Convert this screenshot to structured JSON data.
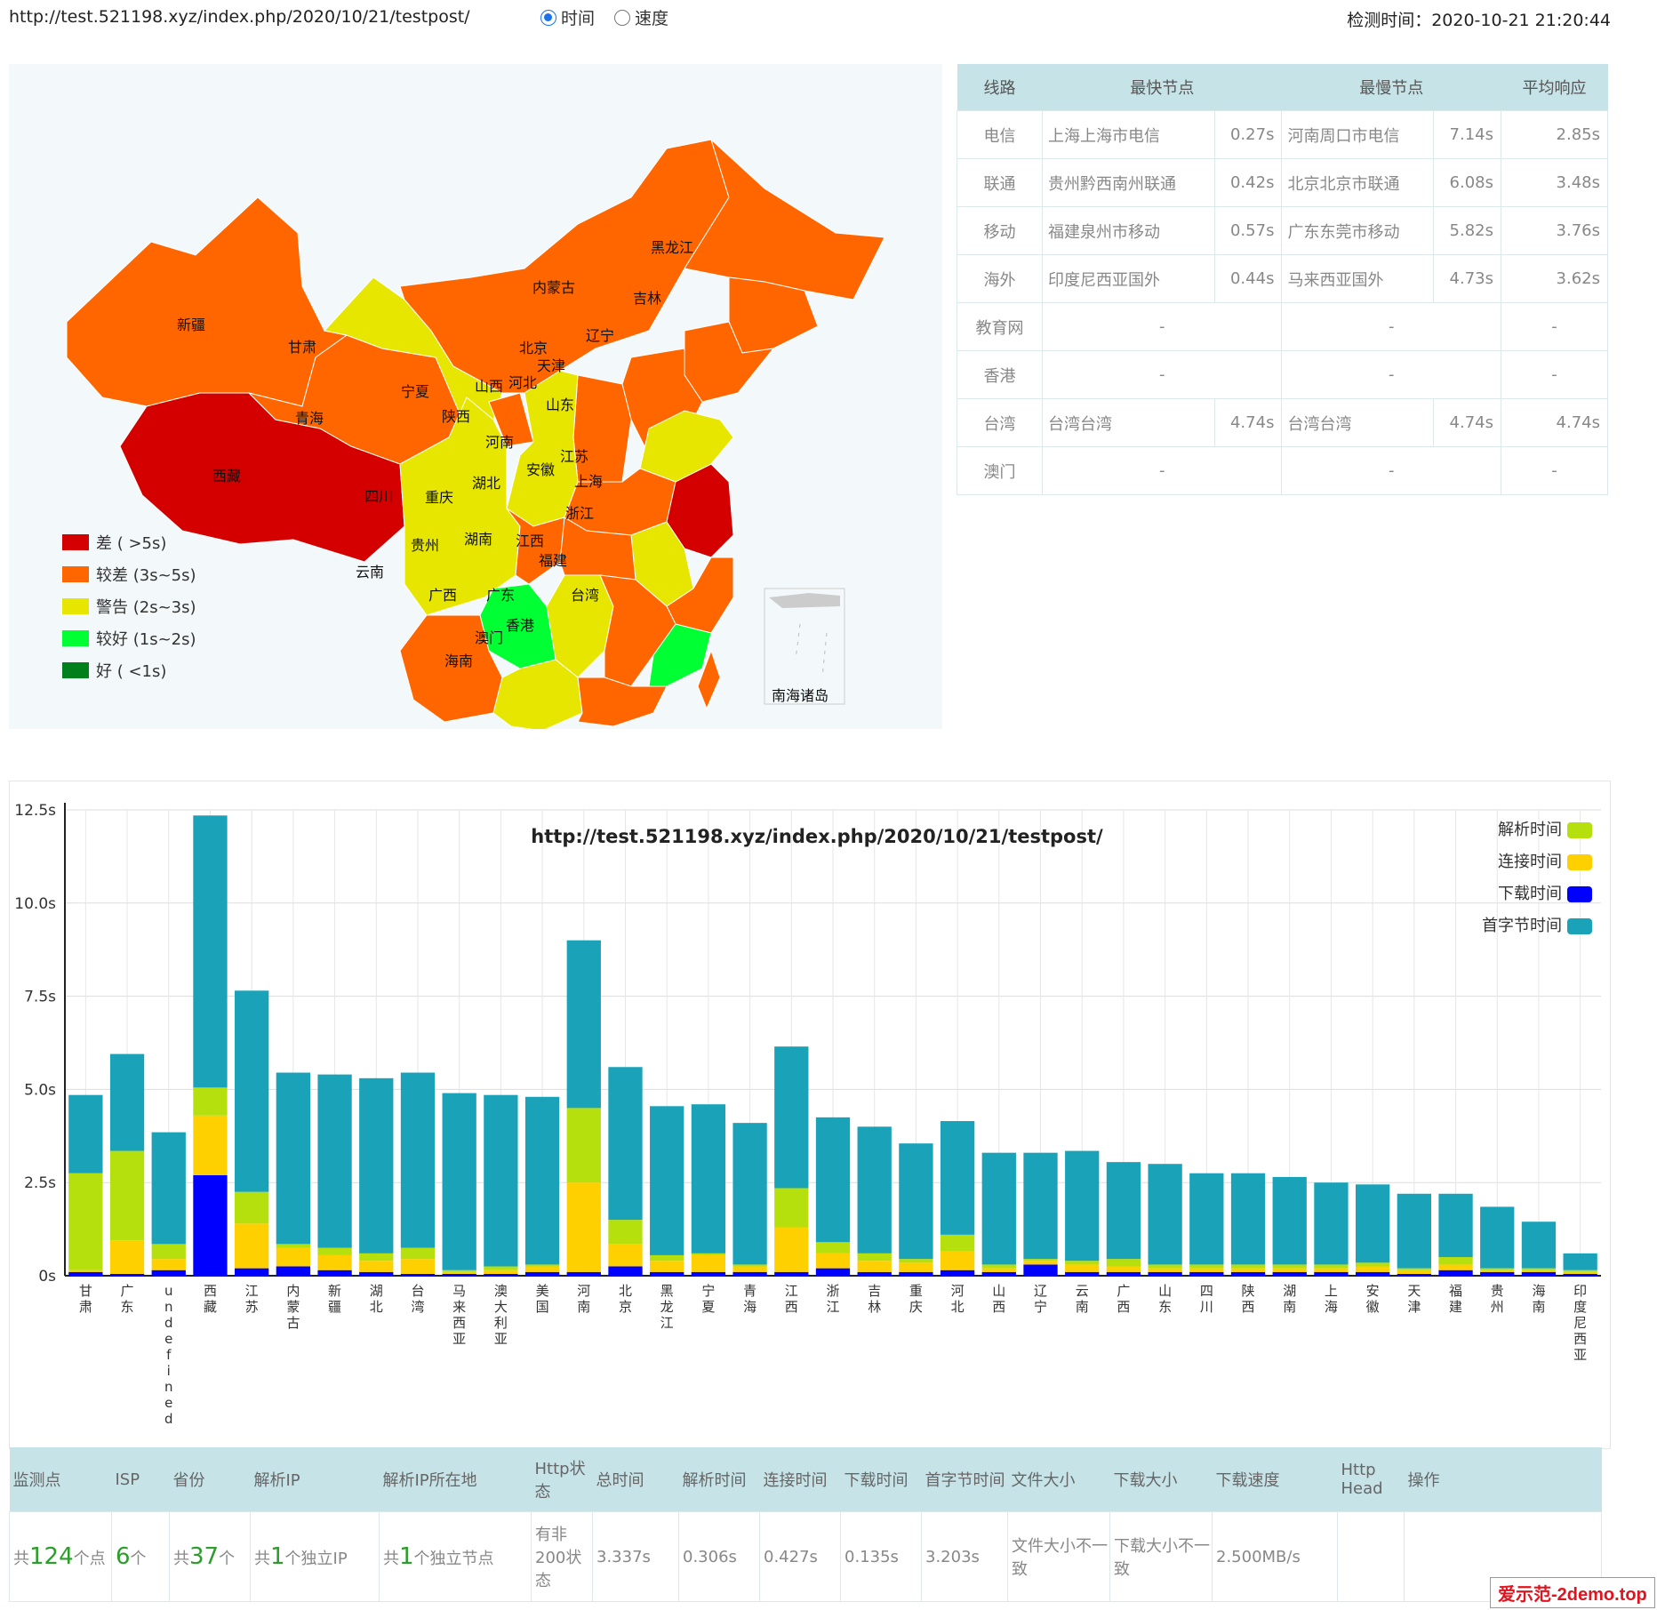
{
  "header": {
    "url": "http://test.521198.xyz/index.php/2020/10/21/testpost/",
    "radio_time": "时间",
    "radio_speed": "速度",
    "check_time": "检测时间：2020-10-21 21:20:44"
  },
  "map": {
    "region_labels": [
      "新疆",
      "西藏",
      "青海",
      "甘肃",
      "内蒙古",
      "黑龙江",
      "吉林",
      "辽宁",
      "北京",
      "天津",
      "河北",
      "山西",
      "宁夏",
      "陕西",
      "山东",
      "河南",
      "江苏",
      "安徽",
      "上海",
      "湖北",
      "重庆",
      "四川",
      "浙江",
      "湖南",
      "贵州",
      "江西",
      "福建",
      "云南",
      "广西",
      "广东",
      "台湾",
      "香港",
      "澳门",
      "海南"
    ],
    "south_sea": "南海诸岛"
  },
  "legend": [
    {
      "label": "差 ( >5s)",
      "color": "#d40000"
    },
    {
      "label": "较差 (3s~5s)",
      "color": "#ff6600"
    },
    {
      "label": "警告 (2s~3s)",
      "color": "#e6e600"
    },
    {
      "label": "较好 (1s~2s)",
      "color": "#00ff33"
    },
    {
      "label": "好 ( <1s)",
      "color": "#00801a"
    }
  ],
  "isp_table": {
    "headers": [
      "线路",
      "最快节点",
      "最慢节点",
      "平均响应"
    ],
    "rows": [
      {
        "line": "电信",
        "fast": "上海上海市电信",
        "fast_t": "0.27s",
        "slow": "河南周口市电信",
        "slow_t": "7.14s",
        "avg": "2.85s"
      },
      {
        "line": "联通",
        "fast": "贵州黔西南州联通",
        "fast_t": "0.42s",
        "slow": "北京北京市联通",
        "slow_t": "6.08s",
        "avg": "3.48s"
      },
      {
        "line": "移动",
        "fast": "福建泉州市移动",
        "fast_t": "0.57s",
        "slow": "广东东莞市移动",
        "slow_t": "5.82s",
        "avg": "3.76s"
      },
      {
        "line": "海外",
        "fast": "印度尼西亚国外",
        "fast_t": "0.44s",
        "slow": "马来西亚国外",
        "slow_t": "4.73s",
        "avg": "3.62s"
      },
      {
        "line": "教育网",
        "fast": "-",
        "fast_t": "",
        "slow": "-",
        "slow_t": "",
        "avg": "-"
      },
      {
        "line": "香港",
        "fast": "-",
        "fast_t": "",
        "slow": "-",
        "slow_t": "",
        "avg": "-"
      },
      {
        "line": "台湾",
        "fast": "台湾台湾",
        "fast_t": "4.74s",
        "slow": "台湾台湾",
        "slow_t": "4.74s",
        "avg": "4.74s"
      },
      {
        "line": "澳门",
        "fast": "-",
        "fast_t": "",
        "slow": "-",
        "slow_t": "",
        "avg": "-"
      }
    ]
  },
  "colors": {
    "resolve": "#b5e00e",
    "connect": "#ffd000",
    "download": "#0000ff",
    "first_byte": "#1aa3b8"
  },
  "chart_data": {
    "type": "bar",
    "stacked": true,
    "title": "http://test.521198.xyz/index.php/2020/10/21/testpost/",
    "categories": [
      "甘肃",
      "广东",
      "undefined",
      "西藏",
      "江苏",
      "内蒙古",
      "新疆",
      "湖北",
      "台湾",
      "马来西亚",
      "澳大利亚",
      "美国",
      "河南",
      "北京",
      "黑龙江",
      "宁夏",
      "青海",
      "江西",
      "浙江",
      "吉林",
      "重庆",
      "河北",
      "山西",
      "辽宁",
      "云南",
      "广西",
      "山东",
      "四川",
      "陕西",
      "湖南",
      "上海",
      "安徽",
      "天津",
      "福建",
      "贵州",
      "海南",
      "印度尼西亚"
    ],
    "series": [
      {
        "name": "下载时间",
        "values": [
          0.1,
          0.05,
          0.15,
          2.7,
          0.2,
          0.25,
          0.15,
          0.1,
          0.05,
          0.05,
          0.05,
          0.1,
          0.1,
          0.25,
          0.1,
          0.1,
          0.1,
          0.1,
          0.2,
          0.1,
          0.1,
          0.15,
          0.1,
          0.3,
          0.1,
          0.1,
          0.1,
          0.1,
          0.1,
          0.1,
          0.1,
          0.1,
          0.05,
          0.15,
          0.1,
          0.1,
          0.05
        ]
      },
      {
        "name": "连接时间",
        "values": [
          0.05,
          0.9,
          0.3,
          1.6,
          1.2,
          0.5,
          0.4,
          0.3,
          0.4,
          0.05,
          0.1,
          0.15,
          2.4,
          0.6,
          0.3,
          0.45,
          0.15,
          1.2,
          0.4,
          0.3,
          0.25,
          0.5,
          0.1,
          0.1,
          0.2,
          0.15,
          0.1,
          0.1,
          0.1,
          0.1,
          0.1,
          0.15,
          0.1,
          0.15,
          0.05,
          0.05,
          0.05
        ]
      },
      {
        "name": "解析时间",
        "values": [
          2.6,
          2.4,
          0.4,
          0.75,
          0.85,
          0.1,
          0.2,
          0.2,
          0.3,
          0.05,
          0.1,
          0.05,
          2.0,
          0.65,
          0.15,
          0.05,
          0.05,
          1.05,
          0.3,
          0.2,
          0.1,
          0.45,
          0.1,
          0.05,
          0.1,
          0.2,
          0.1,
          0.1,
          0.1,
          0.1,
          0.1,
          0.1,
          0.05,
          0.2,
          0.05,
          0.05,
          0.05
        ]
      },
      {
        "name": "首字节时间",
        "values": [
          2.1,
          2.6,
          3.0,
          7.3,
          5.4,
          4.6,
          4.65,
          4.7,
          4.7,
          4.75,
          4.6,
          4.5,
          4.5,
          4.1,
          4.0,
          4.0,
          3.8,
          3.8,
          3.35,
          3.4,
          3.1,
          3.05,
          3.0,
          2.85,
          2.95,
          2.6,
          2.7,
          2.45,
          2.45,
          2.35,
          2.2,
          2.1,
          2.0,
          1.7,
          1.65,
          1.25,
          0.45
        ]
      }
    ],
    "legend_order": [
      "解析时间",
      "连接时间",
      "下载时间",
      "首字节时间"
    ],
    "yticks": [
      "0s",
      "2.5s",
      "5.0s",
      "7.5s",
      "10.0s",
      "12.5s"
    ],
    "ylim": [
      0,
      12.5
    ]
  },
  "bottom_table": {
    "headers": [
      "监测点",
      "ISP",
      "省份",
      "解析IP",
      "解析IP所在地",
      "Http状态",
      "总时间",
      "解析时间",
      "连接时间",
      "下载时间",
      "首字节时间",
      "文件大小",
      "下载大小",
      "下载速度",
      "Http Head",
      "操作"
    ],
    "nodes_prefix": "共",
    "nodes_num": "124",
    "nodes_suffix": "个点",
    "isp_num": "6",
    "isp_suffix": "个",
    "prov_prefix": "共",
    "prov_num": "37",
    "prov_suffix": "个",
    "ip_prefix": "共",
    "ip_num": "1",
    "ip_suffix": "个独立IP",
    "loc_prefix": "共",
    "loc_num": "1",
    "loc_suffix": "个独立节点",
    "http_status": "有非200状态",
    "total": "3.337s",
    "resolve": "0.306s",
    "connect": "0.427s",
    "download": "0.135s",
    "first_byte": "3.203s",
    "file_size": "文件大小不一致",
    "down_size": "下载大小不一致",
    "speed": "2.500MB/s"
  },
  "brand": "爱示范-2demo.top"
}
